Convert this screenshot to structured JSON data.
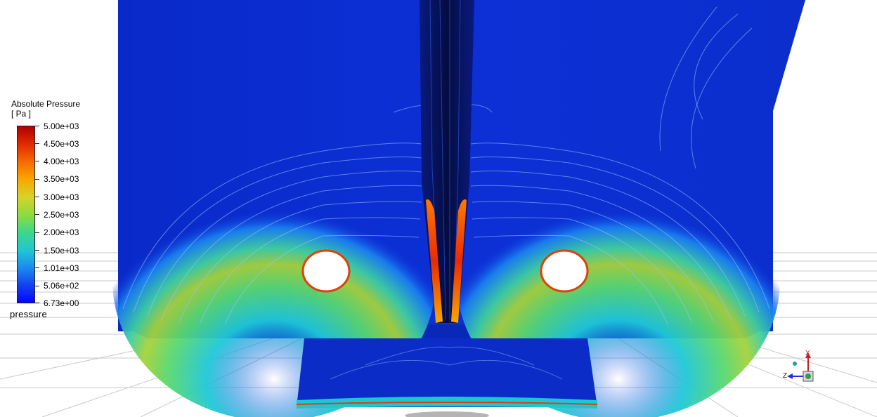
{
  "legend": {
    "title": "Absolute Pressure",
    "unit": "[ Pa ]",
    "variable": "pressure",
    "ticks": [
      "5.00e+03",
      "4.50e+03",
      "4.00e+03",
      "3.50e+03",
      "3.00e+03",
      "2.50e+03",
      "2.00e+03",
      "1.50e+03",
      "1.01e+03",
      "5.06e+02",
      "6.73e+00"
    ],
    "color_max": "#b00000",
    "color_min": "#0606ff"
  },
  "triad": {
    "x_label": "X",
    "z_label": "Z",
    "icons": [
      "axis-triad-icon"
    ]
  },
  "colors": {
    "background": "#ffffff",
    "domain_base": "#0a2fd2",
    "wake_dark": "#08124a",
    "hot": "#e83a10",
    "contour_line": "#9fc4ff"
  }
}
